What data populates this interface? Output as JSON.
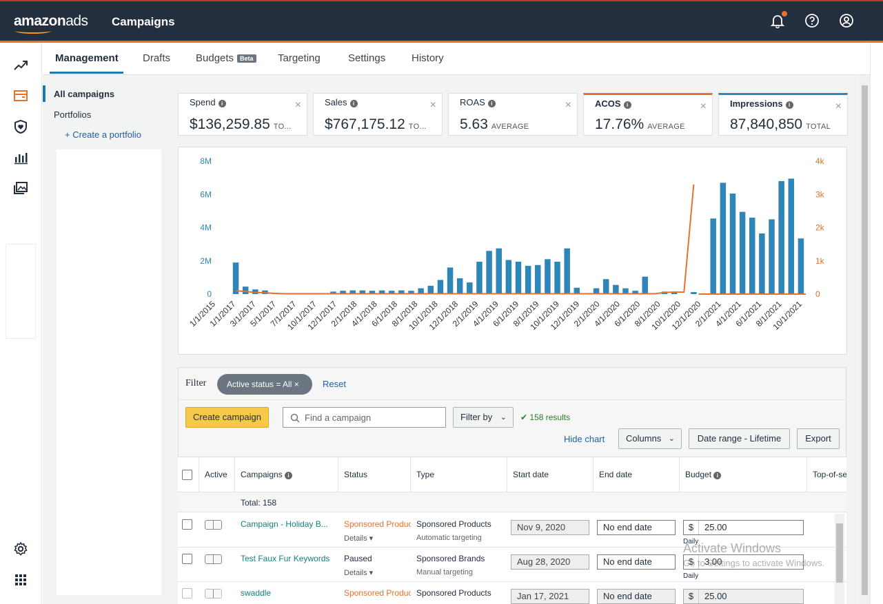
{
  "header": {
    "logo_main": "amazon",
    "logo_sub": "ads",
    "title": "Campaigns"
  },
  "tabs": [
    {
      "label": "Management"
    },
    {
      "label": "Drafts"
    },
    {
      "label": "Budgets",
      "badge": "Beta"
    },
    {
      "label": "Targeting"
    },
    {
      "label": "Settings"
    },
    {
      "label": "History"
    }
  ],
  "sidenav": {
    "all_campaigns": "All campaigns",
    "portfolios": "Portfolios",
    "create_portfolio": "+ Create a portfolio",
    "collapse": "«"
  },
  "metrics": [
    {
      "label": "Spend",
      "value": "$136,259.85",
      "sub": "TO..."
    },
    {
      "label": "Sales",
      "value": "$767,175.12",
      "sub": "TO..."
    },
    {
      "label": "ROAS",
      "value": "5.63",
      "sub": "AVERAGE"
    },
    {
      "label": "ACOS",
      "value": "17.76%",
      "sub": "AVERAGE",
      "accent": "#e8702a"
    },
    {
      "label": "Impressions",
      "value": "87,840,850",
      "sub": "TOTAL",
      "accent": "#2e86b8"
    }
  ],
  "chart_data": {
    "type": "bar",
    "title": "",
    "series": [
      {
        "values": [
          1.9,
          0.45,
          0.28,
          0.22,
          0.05,
          0.0,
          0.0,
          0.0,
          0.0,
          0.05,
          0.15,
          0.2,
          0.22,
          0.22,
          0.2,
          0.22,
          0.2,
          0.22,
          0.2,
          0.35,
          0.5,
          0.85,
          1.6,
          0.95,
          0.7,
          1.95,
          2.6,
          2.75,
          2.05,
          1.95,
          1.7,
          1.75,
          2.1,
          1.95,
          2.75,
          0.38,
          0,
          0.35,
          0.9,
          0.55,
          0.35,
          0.2,
          1.05,
          0,
          0.15,
          0.15,
          0,
          0.12,
          0,
          4.55,
          6.7,
          6.05,
          4.95,
          4.6,
          3.65,
          4.5,
          6.8,
          6.95,
          3.35
        ]
      },
      {
        "values": [
          0.1,
          0.08,
          0.05,
          0.04,
          0.02,
          0.01,
          0.01,
          0.01,
          0.01,
          0.01,
          0.01,
          0.01,
          0.01,
          0.01,
          0.01,
          0.01,
          0.01,
          0.01,
          0.01,
          0.01,
          0.01,
          0.01,
          0.01,
          0.01,
          0.01,
          0.01,
          0.01,
          0.01,
          0.01,
          0.01,
          0.01,
          0.01,
          0.01,
          0.01,
          0.01,
          0.01,
          0.01,
          0.01,
          0.01,
          0.01,
          0.01,
          0.01,
          0.01,
          0.01,
          0.05,
          0.06,
          0.06,
          3.3
        ]
      }
    ],
    "axis_colors": {
      "left": "#2e86b8",
      "right": "#e8702a"
    },
    "left_ticks": [
      "8M",
      "6M",
      "4M",
      "2M",
      "0"
    ],
    "right_ticks": [
      "4k",
      "3k",
      "2k",
      "1k",
      "0"
    ],
    "ylim_left": [
      0,
      8000000
    ],
    "ylim_right": [
      0,
      4000
    ],
    "x_labels": [
      "1/1/2015",
      "1/1/2017",
      "3/1/2017",
      "5/1/2017",
      "7/1/2017",
      "10/1/2017",
      "12/1/2017",
      "2/1/2018",
      "4/1/2018",
      "6/1/2018",
      "8/1/2018",
      "10/1/2018",
      "12/1/2018",
      "2/1/2019",
      "4/1/2019",
      "6/1/2019",
      "8/1/2019",
      "10/1/2019",
      "12/1/2019",
      "2/1/2020",
      "4/1/2020",
      "6/1/2020",
      "8/1/2020",
      "10/1/2020",
      "12/1/2020",
      "2/1/2021",
      "4/1/2021",
      "6/1/2021",
      "8/1/2021",
      "10/1/2021"
    ]
  },
  "filter": {
    "label": "Filter",
    "chip": "Active status = All",
    "reset": "Reset"
  },
  "toolbar": {
    "create": "Create campaign",
    "search_placeholder": "Find a campaign",
    "filter_by": "Filter by",
    "results": "158 results",
    "hide_chart": "Hide chart",
    "columns": "Columns",
    "date_range": "Date range - Lifetime",
    "export": "Export"
  },
  "table": {
    "headers": [
      "Active",
      "Campaigns",
      "Status",
      "Type",
      "Start date",
      "End date",
      "Budget",
      "Top-of-se"
    ],
    "total": "Total: 158",
    "rows": [
      {
        "name": "Campaign - Holiday B...",
        "status": "Sponsored Produc",
        "status_color": "#e8702a",
        "details": "Details",
        "type": "Sponsored Products",
        "subtype": "Automatic targeting",
        "start": "Nov 9, 2020",
        "end": "No end date",
        "currency": "$",
        "budget": "25.00",
        "budget_type": "Daily"
      },
      {
        "name": "Test Faux Fur Keywords",
        "status": "Paused",
        "status_color": "#232f3e",
        "details": "Details",
        "type": "Sponsored Brands",
        "subtype": "Manual targeting",
        "start": "Aug 28, 2020",
        "end": "No end date",
        "currency": "$",
        "budget": "3.00",
        "budget_type": "Daily"
      },
      {
        "name": "swaddle",
        "status": "Sponsored Produc",
        "status_color": "#e8702a",
        "details": "",
        "type": "Sponsored Products",
        "subtype": "",
        "start": "Jan 17, 2021",
        "end": "No end date",
        "currency": "$",
        "budget": "25.00",
        "budget_type": ""
      }
    ]
  },
  "watermark": {
    "title": "Activate Windows",
    "sub": "Go to Settings to activate Windows."
  }
}
